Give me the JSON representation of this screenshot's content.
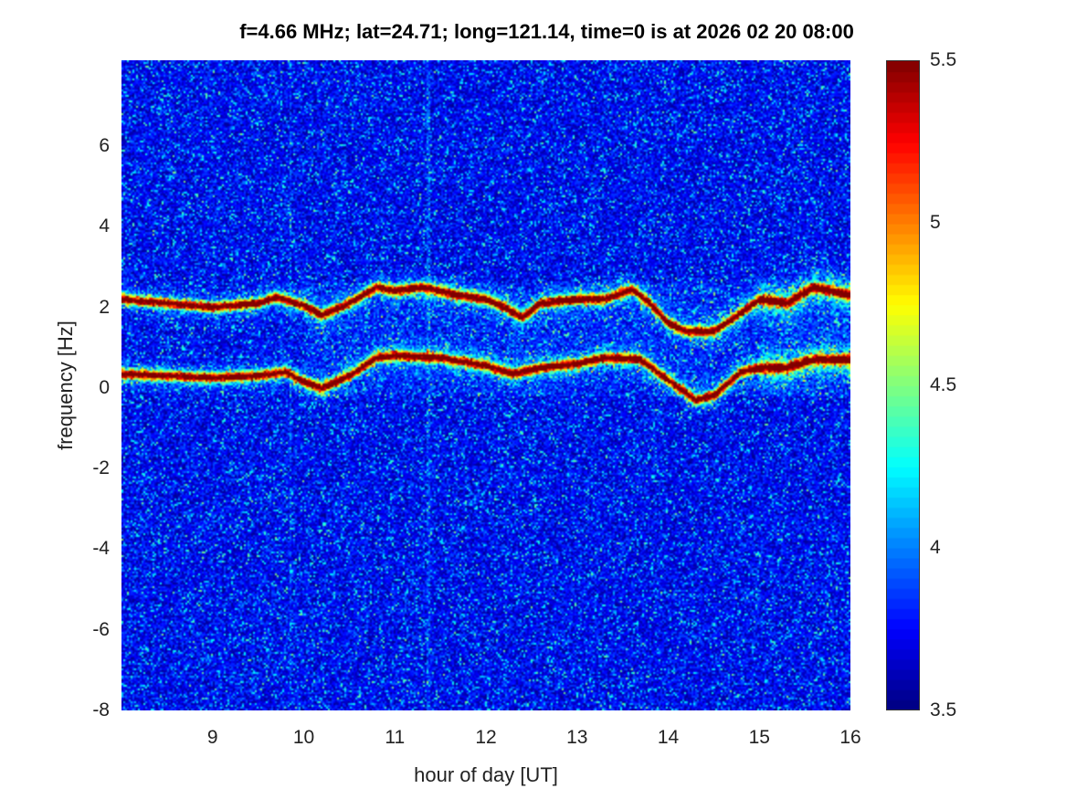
{
  "chart_data": {
    "type": "heatmap",
    "title": "f=4.66 MHz;  lat=24.71; long=121.14, time=0 is at 2026 02 20 08:00",
    "xlabel": "hour of day [UT]",
    "ylabel": "frequency [Hz]",
    "xlim": [
      8,
      16
    ],
    "ylim": [
      -8,
      8.13
    ],
    "xticks": [
      "9",
      "10",
      "11",
      "12",
      "13",
      "14",
      "15",
      "16"
    ],
    "xtick_values": [
      9,
      10,
      11,
      12,
      13,
      14,
      15,
      16
    ],
    "yticks": [
      "-8",
      "-6",
      "-4",
      "-2",
      "0",
      "2",
      "4",
      "6"
    ],
    "ytick_values": [
      -8,
      -6,
      -4,
      -2,
      0,
      2,
      4,
      6
    ],
    "colormap": "jet",
    "clim": [
      3.5,
      5.5
    ],
    "colorbar_ticks": [
      "3.5",
      "4",
      "4.5",
      "5",
      "5.5"
    ],
    "colorbar_tick_values": [
      3.5,
      4,
      4.5,
      5,
      5.5
    ],
    "background_level": 3.7,
    "ridges": [
      {
        "name": "upper trace",
        "hours": [
          8,
          8.5,
          9,
          9.5,
          9.7,
          10,
          10.2,
          10.5,
          10.8,
          11,
          11.3,
          11.7,
          12,
          12.2,
          12.4,
          12.6,
          13,
          13.3,
          13.6,
          13.8,
          14,
          14.2,
          14.5,
          14.7,
          15,
          15.3,
          15.6,
          16
        ],
        "freq": [
          2.2,
          2.1,
          2.0,
          2.1,
          2.25,
          2.05,
          1.8,
          2.1,
          2.5,
          2.4,
          2.5,
          2.3,
          2.2,
          2.0,
          1.75,
          2.1,
          2.2,
          2.2,
          2.45,
          2.1,
          1.6,
          1.4,
          1.4,
          1.7,
          2.2,
          2.1,
          2.5,
          2.3
        ]
      },
      {
        "name": "lower trace",
        "hours": [
          8,
          8.5,
          9,
          9.5,
          9.8,
          10,
          10.2,
          10.5,
          10.8,
          11,
          11.5,
          12,
          12.3,
          12.6,
          13,
          13.3,
          13.7,
          14,
          14.3,
          14.5,
          14.8,
          15,
          15.3,
          15.6,
          16
        ],
        "freq": [
          0.35,
          0.3,
          0.25,
          0.3,
          0.4,
          0.15,
          0.0,
          0.3,
          0.75,
          0.8,
          0.75,
          0.55,
          0.35,
          0.5,
          0.6,
          0.75,
          0.7,
          0.2,
          -0.3,
          -0.2,
          0.4,
          0.5,
          0.5,
          0.7,
          0.7
        ]
      }
    ],
    "vertical_streaks_hours": [
      9.86,
      11.37
    ]
  }
}
